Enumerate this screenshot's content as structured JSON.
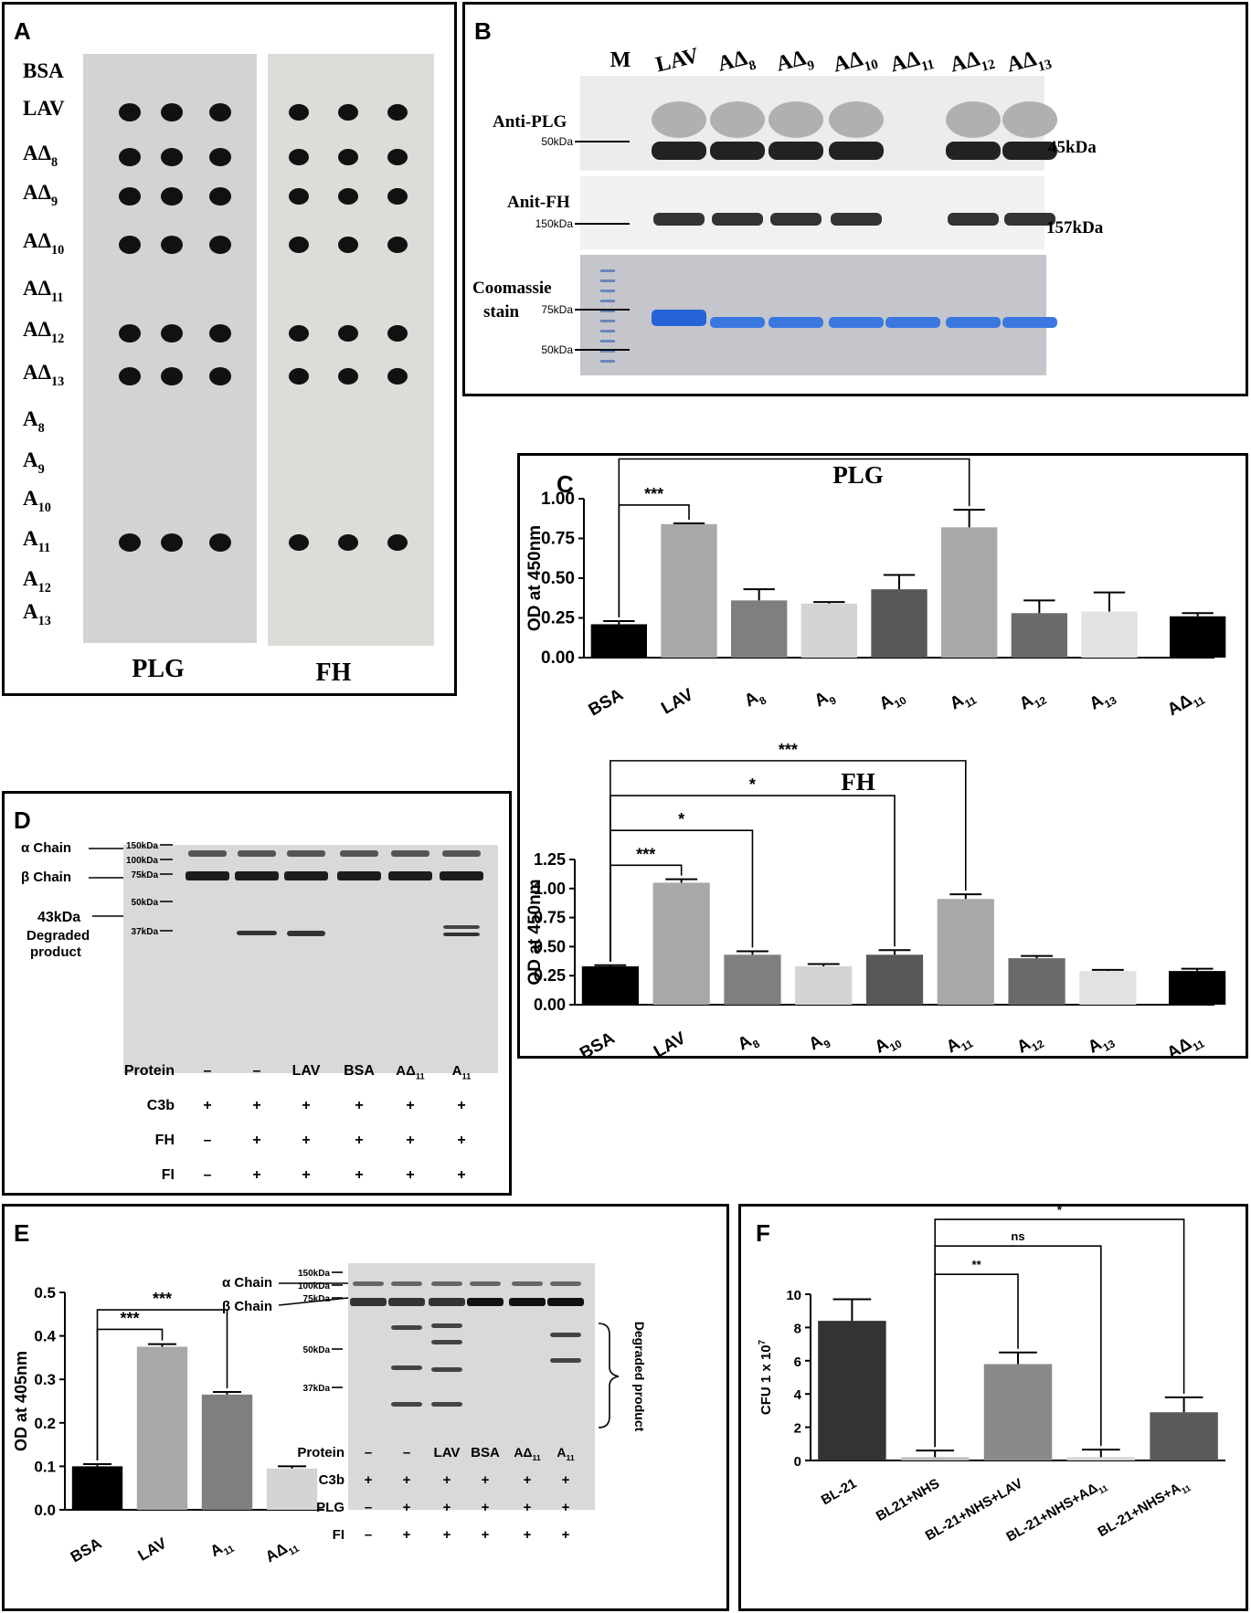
{
  "panelA": {
    "label": "A",
    "row_labels": [
      {
        "base": "BSA",
        "sub": ""
      },
      {
        "base": "LAV",
        "sub": ""
      },
      {
        "base": "AΔ",
        "sub": "8"
      },
      {
        "base": "AΔ",
        "sub": "9"
      },
      {
        "base": "AΔ",
        "sub": "10"
      },
      {
        "base": "AΔ",
        "sub": "11"
      },
      {
        "base": "AΔ",
        "sub": "12"
      },
      {
        "base": "AΔ",
        "sub": "13"
      },
      {
        "base": "A",
        "sub": "8"
      },
      {
        "base": "A",
        "sub": "9"
      },
      {
        "base": "A",
        "sub": "10"
      },
      {
        "base": "A",
        "sub": "11"
      },
      {
        "base": "A",
        "sub": "12"
      },
      {
        "base": "A",
        "sub": "13"
      }
    ],
    "membrane_labels": [
      "PLG",
      "FH"
    ],
    "spot_rows_present": [
      false,
      true,
      true,
      true,
      true,
      false,
      true,
      true,
      false,
      false,
      false,
      true,
      false,
      false
    ]
  },
  "panelB": {
    "label": "B",
    "lanes": [
      {
        "base": "M",
        "sub": ""
      },
      {
        "base": "LAV",
        "sub": ""
      },
      {
        "base": "AΔ",
        "sub": "8"
      },
      {
        "base": "AΔ",
        "sub": "9"
      },
      {
        "base": "AΔ",
        "sub": "10"
      },
      {
        "base": "AΔ",
        "sub": "11"
      },
      {
        "base": "AΔ",
        "sub": "12"
      },
      {
        "base": "AΔ",
        "sub": "13"
      }
    ],
    "blot_labels": [
      "Anti-PLG",
      "Anit-FH",
      "Coomassie",
      "stain"
    ],
    "markers": [
      "50kDa",
      "150kDa",
      "75kDa",
      "50kDa"
    ],
    "sizes": [
      "45kDa",
      "157kDa"
    ]
  },
  "panelC": {
    "label": "C",
    "charts": [
      {
        "title": "PLG",
        "ylabel": "OD at 450nm",
        "ylim": [
          0,
          1.0
        ],
        "yticks": [
          "0.00",
          "0.25",
          "0.50",
          "0.75",
          "1.00"
        ],
        "categories": [
          {
            "base": "BSA",
            "sub": ""
          },
          {
            "base": "LAV",
            "sub": ""
          },
          {
            "base": "A",
            "sub": "8"
          },
          {
            "base": "A",
            "sub": "9"
          },
          {
            "base": "A",
            "sub": "10"
          },
          {
            "base": "A",
            "sub": "11"
          },
          {
            "base": "A",
            "sub": "12"
          },
          {
            "base": "A",
            "sub": "13"
          },
          {
            "base": "AΔ",
            "sub": "11"
          }
        ],
        "values": [
          0.21,
          0.84,
          0.36,
          0.34,
          0.43,
          0.82,
          0.28,
          0.29,
          0.26
        ],
        "errors": [
          0.02,
          0.005,
          0.07,
          0.01,
          0.09,
          0.11,
          0.08,
          0.12,
          0.02
        ],
        "colors": [
          "#000000",
          "#a8a8aa",
          "#7f7f7f",
          "#d4d4d4",
          "#585858",
          "#a8a8aa",
          "#6a6a6a",
          "#e2e2e2",
          "#000000"
        ],
        "significance": [
          {
            "from": 0,
            "to": 1,
            "label": "***",
            "level": 0.96
          },
          {
            "from": 0,
            "to": 5,
            "label": "***",
            "level": 1.25
          }
        ]
      },
      {
        "title": "FH",
        "ylabel": "OD at 450nm",
        "ylim": [
          0,
          1.25
        ],
        "yticks": [
          "0.00",
          "0.25",
          "0.50",
          "0.75",
          "1.00",
          "1.25"
        ],
        "categories": [
          {
            "base": "BSA",
            "sub": ""
          },
          {
            "base": "LAV",
            "sub": ""
          },
          {
            "base": "A",
            "sub": "8"
          },
          {
            "base": "A",
            "sub": "9"
          },
          {
            "base": "A",
            "sub": "10"
          },
          {
            "base": "A",
            "sub": "11"
          },
          {
            "base": "A",
            "sub": "12"
          },
          {
            "base": "A",
            "sub": "13"
          },
          {
            "base": "AΔ",
            "sub": "11"
          }
        ],
        "values": [
          0.33,
          1.05,
          0.43,
          0.33,
          0.43,
          0.91,
          0.4,
          0.29,
          0.29
        ],
        "errors": [
          0.01,
          0.03,
          0.03,
          0.02,
          0.04,
          0.04,
          0.02,
          0.01,
          0.02
        ],
        "colors": [
          "#000000",
          "#a8a8aa",
          "#7f7f7f",
          "#d4d4d4",
          "#585858",
          "#a8a8aa",
          "#6a6a6a",
          "#e2e2e2",
          "#000000"
        ],
        "significance": [
          {
            "from": 0,
            "to": 1,
            "label": "***",
            "level": 1.2
          },
          {
            "from": 0,
            "to": 2,
            "label": "*",
            "level": 1.5
          },
          {
            "from": 0,
            "to": 4,
            "label": "*",
            "level": 1.8
          },
          {
            "from": 0,
            "to": 5,
            "label": "***",
            "level": 2.1
          }
        ]
      }
    ]
  },
  "panelD": {
    "label": "D",
    "chain_labels": [
      "α Chain",
      "β Chain",
      "43kDa",
      "Degraded",
      "product"
    ],
    "markers": [
      "150kDa",
      "100kDa",
      "75kDa",
      "50kDa",
      "37kDa"
    ],
    "table": [
      {
        "label": "Protein",
        "cells": [
          "–",
          "–",
          "LAV",
          "BSA",
          "AΔ11",
          "A11"
        ]
      },
      {
        "label": "C3b",
        "cells": [
          "+",
          "+",
          "+",
          "+",
          "+",
          "+"
        ]
      },
      {
        "label": "FH",
        "cells": [
          "–",
          "+",
          "+",
          "+",
          "+",
          "+"
        ]
      },
      {
        "label": "FI",
        "cells": [
          "–",
          "+",
          "+",
          "+",
          "+",
          "+"
        ]
      }
    ]
  },
  "panelE": {
    "label": "E",
    "chart_data": {
      "type": "bar",
      "ylabel": "OD at 405nm",
      "ylim": [
        0,
        0.5
      ],
      "yticks": [
        "0.0",
        "0.1",
        "0.2",
        "0.3",
        "0.4",
        "0.5"
      ],
      "categories": [
        {
          "base": "BSA",
          "sub": ""
        },
        {
          "base": "LAV",
          "sub": ""
        },
        {
          "base": "A",
          "sub": "11"
        },
        {
          "base": "AΔ",
          "sub": "11"
        }
      ],
      "values": [
        0.1,
        0.375,
        0.265,
        0.095
      ],
      "errors": [
        0.005,
        0.006,
        0.006,
        0.005
      ],
      "colors": [
        "#000000",
        "#a8a8aa",
        "#7f7f7f",
        "#d4d4d4"
      ],
      "significance": [
        {
          "from": 0,
          "to": 1,
          "label": "***",
          "level": 0.415
        },
        {
          "from": 0,
          "to": 2,
          "label": "***",
          "level": 0.46
        }
      ]
    },
    "chain_labels": [
      "α Chain",
      "β Chain",
      "Degraded product"
    ],
    "markers": [
      "150kDa",
      "100kDa",
      "75kDa",
      "50kDa",
      "37kDa"
    ],
    "table": [
      {
        "label": "Protein",
        "cells": [
          "–",
          "–",
          "LAV",
          "BSA",
          "AΔ11",
          "A11"
        ]
      },
      {
        "label": "C3b",
        "cells": [
          "+",
          "+",
          "+",
          "+",
          "+",
          "+"
        ]
      },
      {
        "label": "PLG",
        "cells": [
          "–",
          "+",
          "+",
          "+",
          "+",
          "+"
        ]
      },
      {
        "label": "FI",
        "cells": [
          "–",
          "+",
          "+",
          "+",
          "+",
          "+"
        ]
      }
    ]
  },
  "panelF": {
    "label": "F",
    "chart_data": {
      "type": "bar",
      "ylabel": "CFU 1 x 10",
      "ylabel_sup": "7",
      "ylim": [
        0,
        10
      ],
      "yticks": [
        "0",
        "2",
        "4",
        "6",
        "8",
        "10"
      ],
      "categories": [
        {
          "base": "BL-21",
          "sub": ""
        },
        {
          "base": "BL21+NHS",
          "sub": ""
        },
        {
          "base": "BL-21+NHS+LAV",
          "sub": ""
        },
        {
          "base": "BL-21+NHS+AΔ",
          "sub": "11"
        },
        {
          "base": "BL-21+NHS+A",
          "sub": "11"
        }
      ],
      "values": [
        8.4,
        0.2,
        5.8,
        0.2,
        2.9
      ],
      "errors": [
        1.3,
        0.4,
        0.7,
        0.45,
        0.9
      ],
      "colors": [
        "#333333",
        "#bdbdbd",
        "#8a8a8a",
        "#d6d6d6",
        "#5a5a5a"
      ],
      "significance": [
        {
          "from": 1,
          "to": 2,
          "label": "**",
          "level": 11.2
        },
        {
          "from": 1,
          "to": 3,
          "label": "ns",
          "level": 12.9
        },
        {
          "from": 1,
          "to": 4,
          "label": "*",
          "level": 14.5
        }
      ]
    }
  }
}
